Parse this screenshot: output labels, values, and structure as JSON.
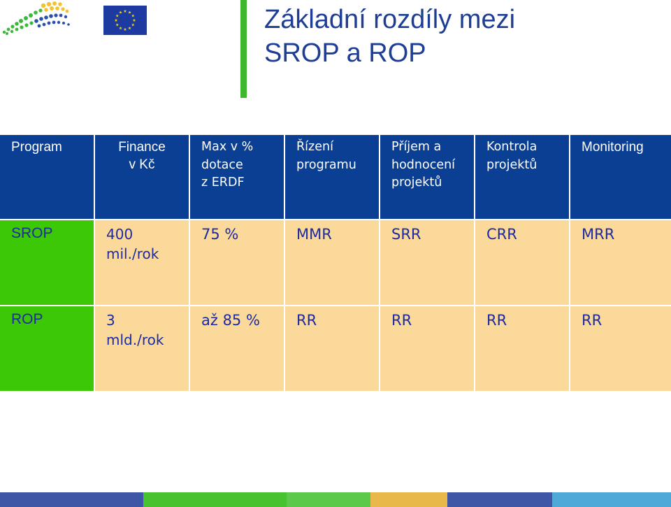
{
  "title": {
    "line1": "Základní rozdíly mezi",
    "line2": "SROP a ROP"
  },
  "table": {
    "headers": [
      {
        "key": "program",
        "lines": [
          "Program"
        ]
      },
      {
        "key": "finance",
        "lines": [
          "Finance",
          "v Kč"
        ]
      },
      {
        "key": "max_dotace",
        "lines": [
          "Max v %",
          "dotace",
          "z ERDF"
        ]
      },
      {
        "key": "rizeni",
        "lines": [
          "Řízení",
          "programu"
        ]
      },
      {
        "key": "prijem",
        "lines": [
          "Příjem a",
          "hodnocení",
          "projektů"
        ]
      },
      {
        "key": "kontrola",
        "lines": [
          "Kontrola",
          "projektů"
        ]
      },
      {
        "key": "monitoring",
        "lines": [
          "Monitoring"
        ]
      }
    ],
    "rows": [
      {
        "program": "SROP",
        "finance": [
          "400",
          "mil./rok"
        ],
        "max_dotace": "75 %",
        "rizeni": "MMR",
        "prijem": "SRR",
        "kontrola": "CRR",
        "monitoring": "MRR"
      },
      {
        "program": "ROP",
        "finance": [
          "3",
          "mld./rok"
        ],
        "max_dotace": "až 85 %",
        "rizeni": "RR",
        "prijem": "RR",
        "kontrola": "RR",
        "monitoring": "RR"
      }
    ]
  },
  "colors": {
    "header_bg": "#0a3f94",
    "title_text": "#1e3e96",
    "green_cell": "#3cc806",
    "peach_cell": "#fbd99a",
    "cell_text": "#1e2aa0",
    "accent_bar": "#3db82e"
  },
  "icons": {
    "logo": "dotted-wave-logo",
    "flag": "eu-flag-icon"
  }
}
